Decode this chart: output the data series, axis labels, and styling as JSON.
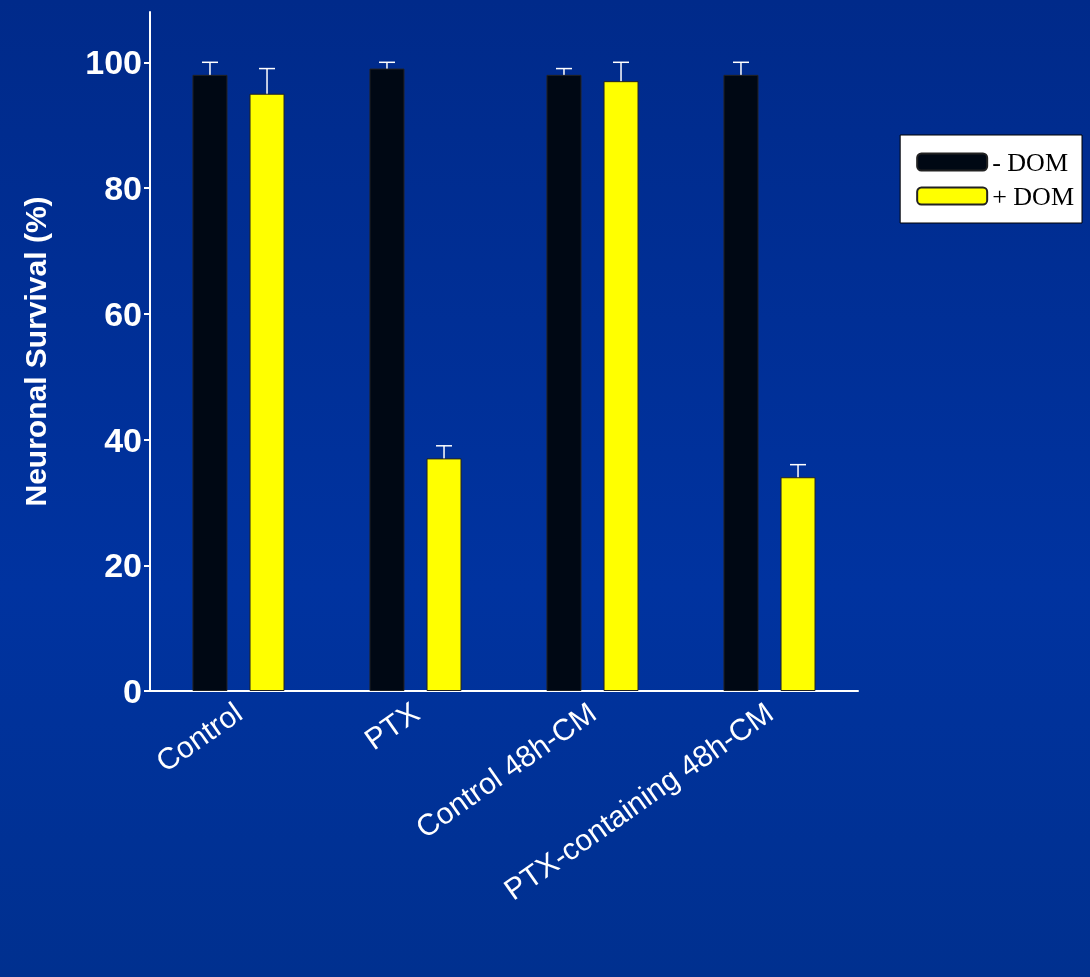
{
  "chart_data": {
    "type": "bar",
    "ylabel": "Neuronal Survival (%)",
    "categories": [
      "Control",
      "PTX",
      "Control 48h-CM",
      "PTX-containing 48h-CM"
    ],
    "series": [
      {
        "name": "- DOM",
        "color": "#000814",
        "values": [
          98,
          99,
          98,
          98
        ],
        "errors": [
          2,
          1,
          1,
          2
        ]
      },
      {
        "name": "+ DOM",
        "color": "#ffff00",
        "values": [
          95,
          37,
          97,
          34
        ],
        "errors": [
          4,
          2,
          3,
          2
        ]
      }
    ],
    "ylim": [
      0,
      108
    ],
    "yticks": [
      0,
      20,
      40,
      60,
      80,
      100
    ],
    "grid": false,
    "legend": "right"
  }
}
